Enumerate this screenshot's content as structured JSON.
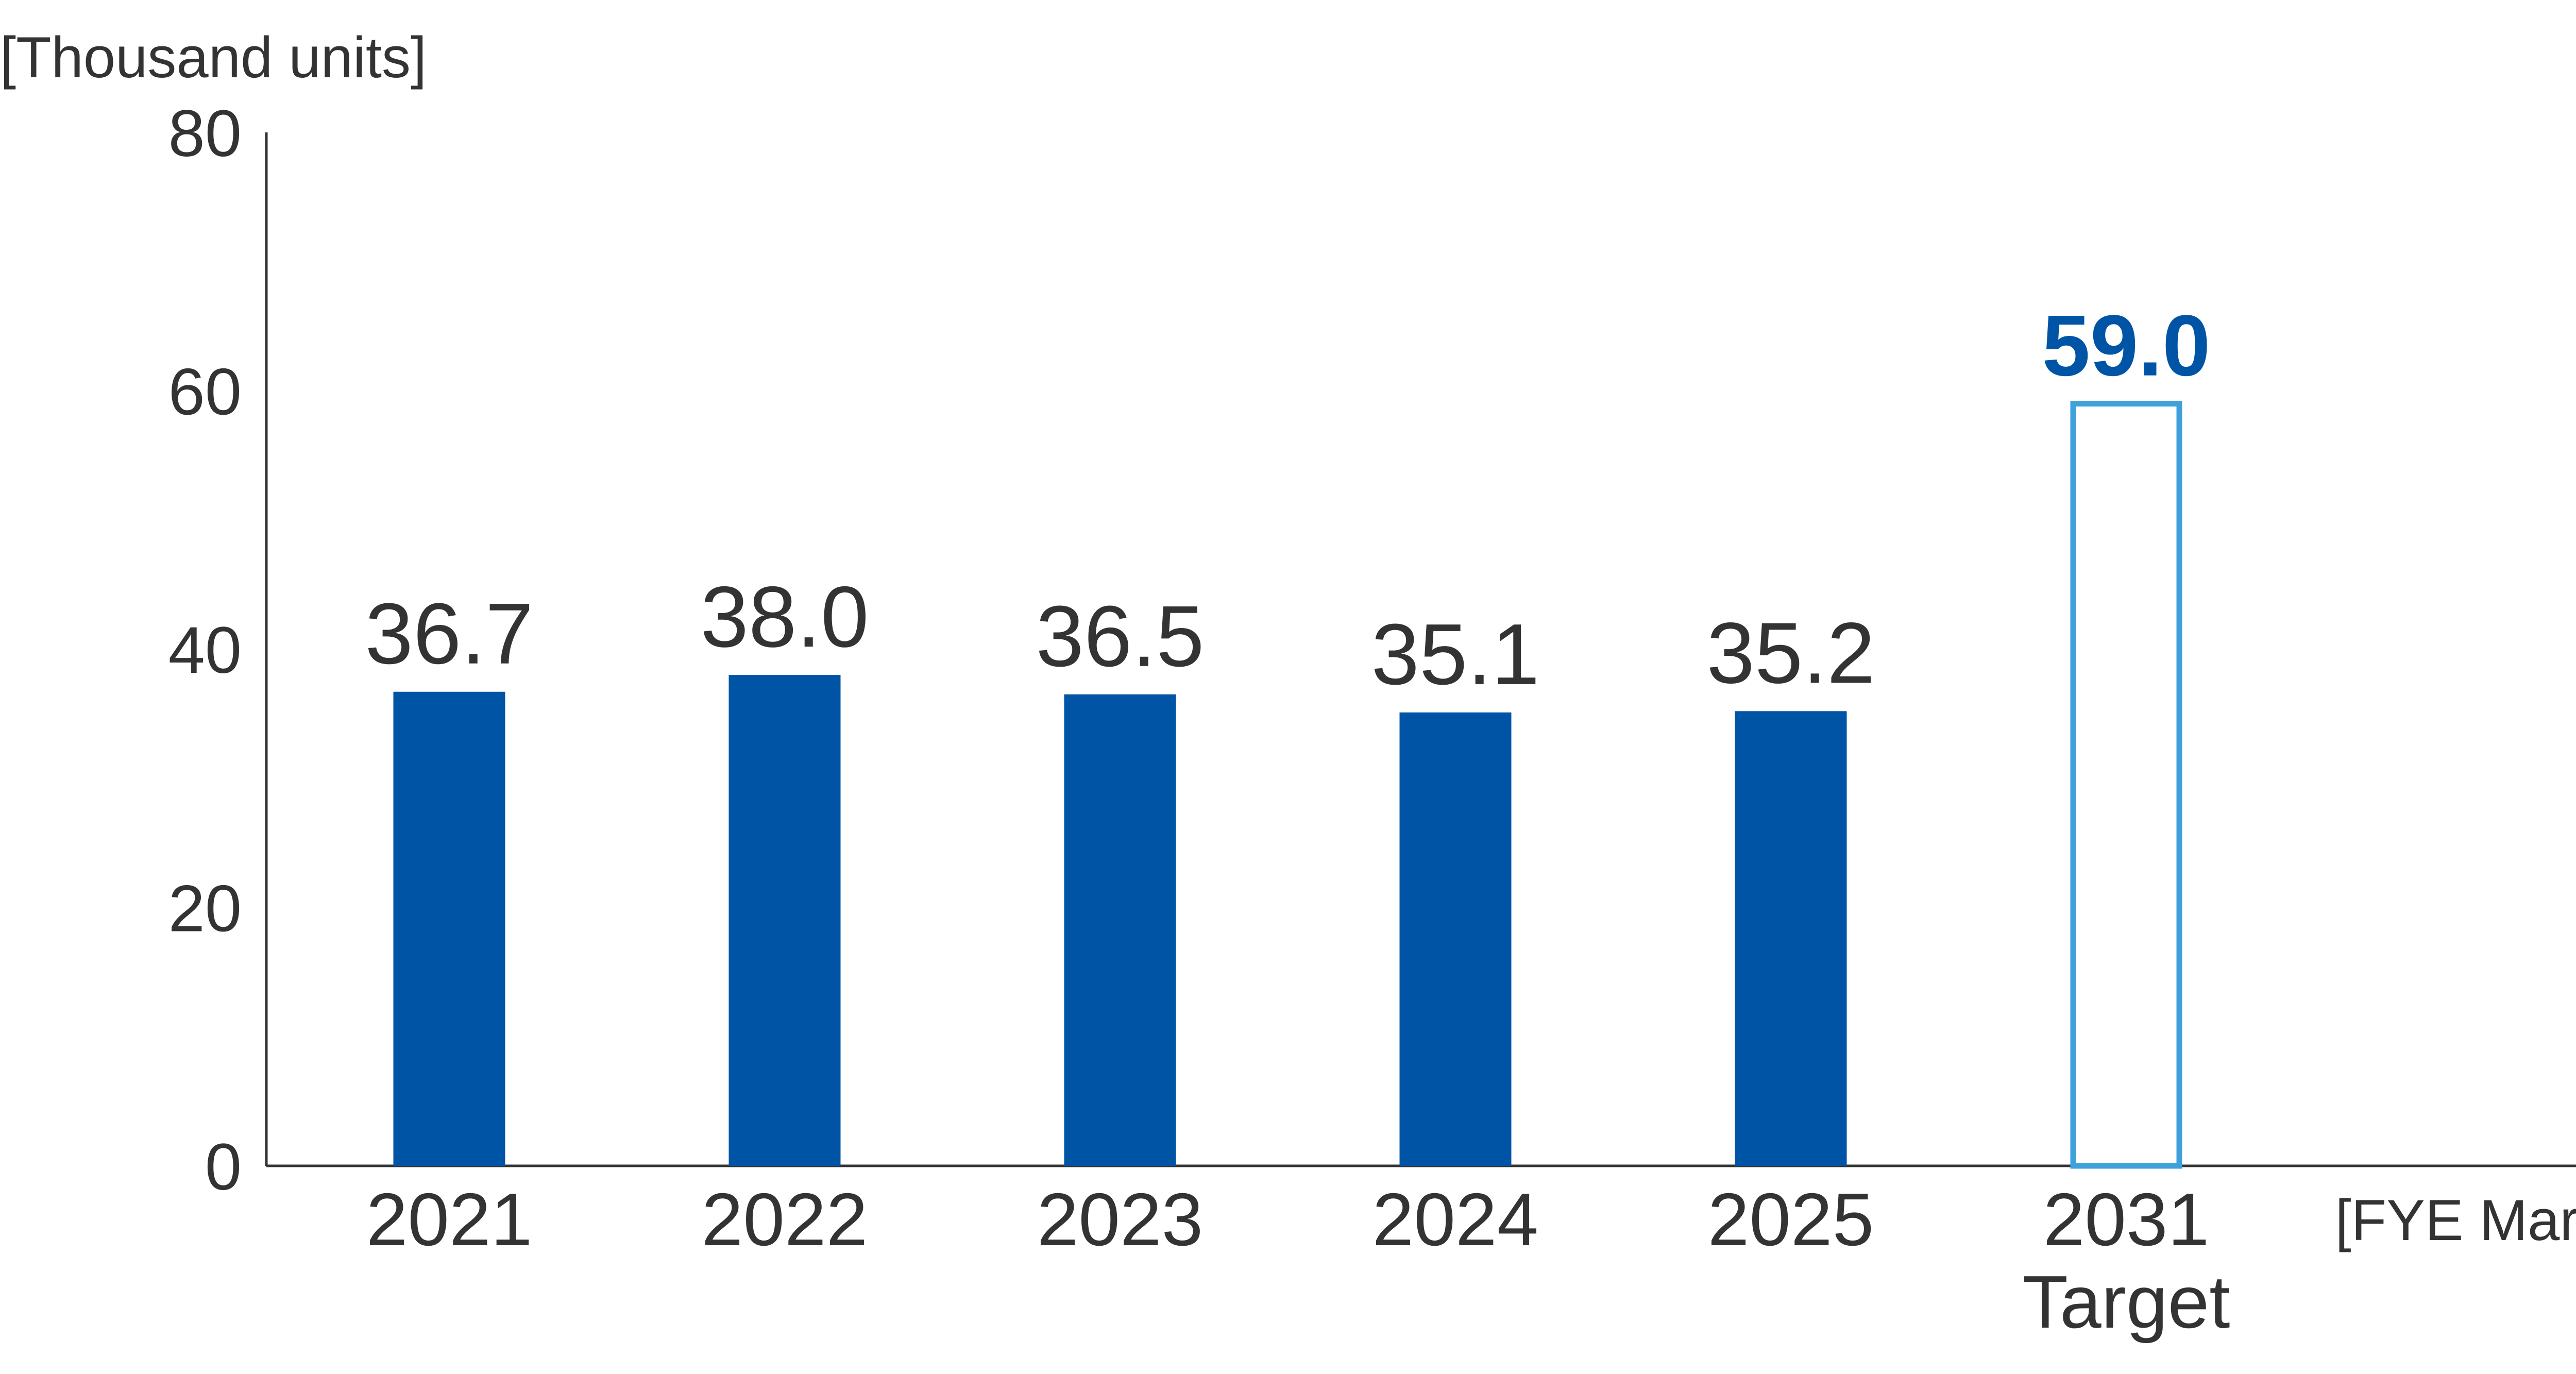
{
  "chart_data": {
    "type": "bar",
    "ylabel": "[Thousand units]",
    "xlabel": "[FYE March]",
    "ylim": [
      0,
      80
    ],
    "yticks": [
      "0",
      "20",
      "40",
      "60",
      "80"
    ],
    "grid": false,
    "categories": [
      "2021",
      "2022",
      "2023",
      "2024",
      "2025",
      "2031"
    ],
    "category_sublabels": [
      "",
      "",
      "",
      "",
      "",
      "Target"
    ],
    "values": [
      36.7,
      38.0,
      36.5,
      35.1,
      35.2,
      59.0
    ],
    "value_labels": [
      "36.7",
      "38.0",
      "36.5",
      "35.1",
      "35.2",
      "59.0"
    ],
    "bar_styles": [
      "solid",
      "solid",
      "solid",
      "solid",
      "solid",
      "outline"
    ],
    "colors": {
      "actual_bar": "#0054a6",
      "target_bar": "#3ea1dc",
      "target_label": "#0054a6",
      "text": "#333333",
      "axis": "#333333"
    }
  }
}
